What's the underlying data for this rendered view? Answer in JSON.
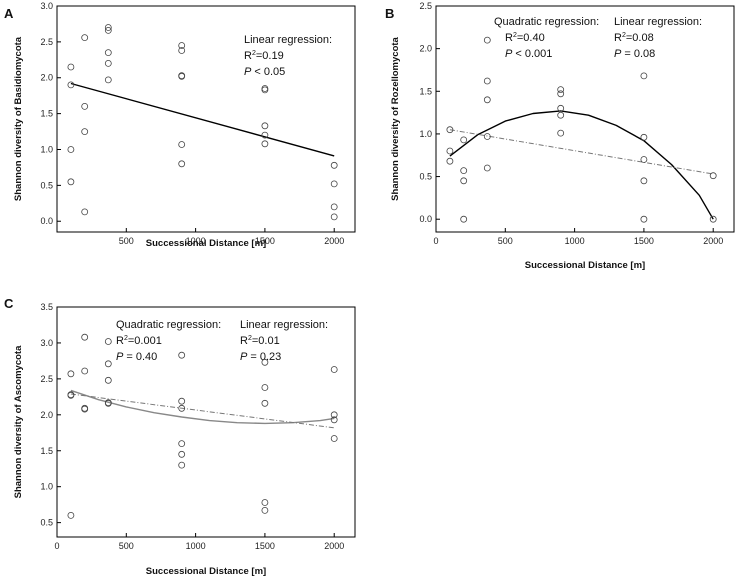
{
  "chart_data": [
    {
      "panel_label": "A",
      "type": "scatter",
      "xlabel": "Successional Distance [m]",
      "ylabel": "Shannon diversity of Basidiomycota",
      "xlim": [
        0,
        2150
      ],
      "ylim": [
        -0.15,
        3.0
      ],
      "xticks": [
        "500",
        "1000",
        "1500",
        "2000"
      ],
      "xtick_values": [
        500,
        1000,
        1500,
        2000
      ],
      "yticks": [
        "0.0",
        "0.5",
        "1.0",
        "1.5",
        "2.0",
        "2.5",
        "3.0"
      ],
      "ytick_values": [
        0.0,
        0.5,
        1.0,
        1.5,
        2.0,
        2.5,
        3.0
      ],
      "points": [
        [
          100,
          2.15
        ],
        [
          100,
          1.9
        ],
        [
          100,
          1.0
        ],
        [
          100,
          0.55
        ],
        [
          200,
          2.56
        ],
        [
          200,
          1.6
        ],
        [
          200,
          1.25
        ],
        [
          200,
          0.13
        ],
        [
          370,
          2.7
        ],
        [
          370,
          2.66
        ],
        [
          370,
          2.35
        ],
        [
          370,
          2.2
        ],
        [
          370,
          1.97
        ],
        [
          900,
          2.45
        ],
        [
          900,
          2.38
        ],
        [
          900,
          2.03
        ],
        [
          900,
          2.02
        ],
        [
          900,
          1.07
        ],
        [
          900,
          0.8
        ],
        [
          1500,
          1.85
        ],
        [
          1500,
          1.83
        ],
        [
          1500,
          1.33
        ],
        [
          1500,
          1.2
        ],
        [
          1500,
          1.08
        ],
        [
          2000,
          0.78
        ],
        [
          2000,
          0.52
        ],
        [
          2000,
          0.2
        ],
        [
          2000,
          0.06
        ]
      ],
      "fits": [
        {
          "name": "Linear regression",
          "style": "solid",
          "x": [
            100,
            2000
          ],
          "y": [
            1.92,
            0.91
          ]
        }
      ],
      "annotations": [
        {
          "title": "Linear regression:",
          "r2": "=0.19",
          "p": " < 0.05"
        }
      ]
    },
    {
      "panel_label": "B",
      "type": "scatter",
      "xlabel": "Successional Distance [m]",
      "ylabel": "Shannon diversity of Rozellomycota",
      "xlim": [
        0,
        2150
      ],
      "ylim": [
        -0.15,
        2.5
      ],
      "xticks": [
        "0",
        "500",
        "1000",
        "1500",
        "2000"
      ],
      "xtick_values": [
        0,
        500,
        1000,
        1500,
        2000
      ],
      "yticks": [
        "0.0",
        "0.5",
        "1.0",
        "1.5",
        "2.0",
        "2.5"
      ],
      "ytick_values": [
        0.0,
        0.5,
        1.0,
        1.5,
        2.0,
        2.5
      ],
      "points": [
        [
          100,
          1.05
        ],
        [
          100,
          0.8
        ],
        [
          100,
          0.68
        ],
        [
          200,
          0.93
        ],
        [
          200,
          0.57
        ],
        [
          200,
          0.45
        ],
        [
          200,
          0.0
        ],
        [
          370,
          2.1
        ],
        [
          370,
          1.62
        ],
        [
          370,
          1.4
        ],
        [
          370,
          0.97
        ],
        [
          370,
          0.6
        ],
        [
          900,
          1.52
        ],
        [
          900,
          1.47
        ],
        [
          900,
          1.3
        ],
        [
          900,
          1.22
        ],
        [
          900,
          1.01
        ],
        [
          1500,
          1.68
        ],
        [
          1500,
          0.96
        ],
        [
          1500,
          0.7
        ],
        [
          1500,
          0.45
        ],
        [
          1500,
          0.0
        ],
        [
          2000,
          0.51
        ],
        [
          2000,
          0.0
        ]
      ],
      "fits": [
        {
          "name": "Quadratic regression",
          "style": "solid",
          "x": [
            100,
            300,
            500,
            700,
            900,
            1100,
            1300,
            1500,
            1700,
            1900,
            2000
          ],
          "y": [
            0.74,
            0.99,
            1.15,
            1.24,
            1.27,
            1.22,
            1.1,
            0.92,
            0.64,
            0.28,
            0.0
          ]
        },
        {
          "name": "Linear regression",
          "style": "dashdot",
          "x": [
            100,
            2000
          ],
          "y": [
            1.05,
            0.53
          ]
        }
      ],
      "annotations": [
        {
          "title": "Quadratic regression:",
          "r2": "=0.40",
          "p": " < 0.001"
        },
        {
          "title": "Linear regression:",
          "r2": "=0.08",
          "p": " = 0.08"
        }
      ]
    },
    {
      "panel_label": "C",
      "type": "scatter",
      "xlabel": "Successional Distance [m]",
      "ylabel": "Shannon diversity of Ascomycota",
      "xlim": [
        0,
        2150
      ],
      "ylim": [
        0.3,
        3.5
      ],
      "xticks": [
        "0",
        "500",
        "1000",
        "1500",
        "2000"
      ],
      "xtick_values": [
        0,
        500,
        1000,
        1500,
        2000
      ],
      "yticks": [
        "0.5",
        "1.0",
        "1.5",
        "2.0",
        "2.5",
        "3.0",
        "3.5"
      ],
      "ytick_values": [
        0.5,
        1.0,
        1.5,
        2.0,
        2.5,
        3.0,
        3.5
      ],
      "points": [
        [
          100,
          2.57
        ],
        [
          100,
          2.28
        ],
        [
          100,
          2.27
        ],
        [
          100,
          0.6
        ],
        [
          200,
          3.08
        ],
        [
          200,
          2.61
        ],
        [
          200,
          2.09
        ],
        [
          200,
          2.08
        ],
        [
          370,
          3.02
        ],
        [
          370,
          2.71
        ],
        [
          370,
          2.48
        ],
        [
          370,
          2.17
        ],
        [
          370,
          2.16
        ],
        [
          900,
          2.83
        ],
        [
          900,
          2.19
        ],
        [
          900,
          2.09
        ],
        [
          900,
          1.6
        ],
        [
          900,
          1.45
        ],
        [
          900,
          1.3
        ],
        [
          1500,
          2.73
        ],
        [
          1500,
          2.38
        ],
        [
          1500,
          2.16
        ],
        [
          1500,
          0.78
        ],
        [
          1500,
          0.67
        ],
        [
          2000,
          2.63
        ],
        [
          2000,
          2.0
        ],
        [
          2000,
          1.93
        ],
        [
          2000,
          1.67
        ]
      ],
      "fits": [
        {
          "name": "Quadratic regression",
          "style": "solid-gray",
          "x": [
            100,
            300,
            500,
            700,
            900,
            1100,
            1300,
            1500,
            1700,
            1900,
            2000
          ],
          "y": [
            2.34,
            2.21,
            2.11,
            2.03,
            1.97,
            1.92,
            1.89,
            1.88,
            1.89,
            1.92,
            1.95
          ]
        },
        {
          "name": "Linear regression",
          "style": "dashdot",
          "x": [
            100,
            2000
          ],
          "y": [
            2.29,
            1.82
          ]
        }
      ],
      "annotations": [
        {
          "title": "Quadratic regression:",
          "r2": "=0.001",
          "p": " = 0.40"
        },
        {
          "title": "Linear regression:",
          "r2": "=0.01",
          "p": " = 0.23"
        }
      ]
    }
  ]
}
